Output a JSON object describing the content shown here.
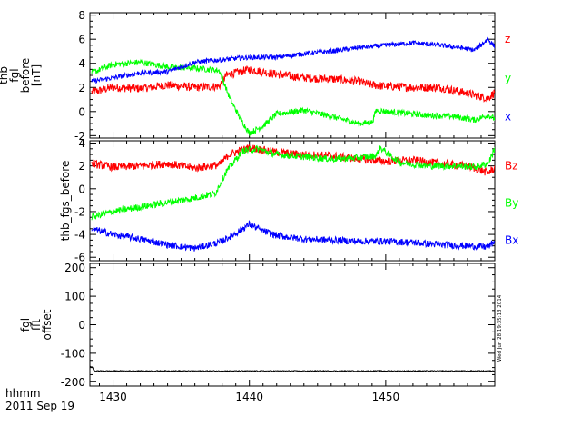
{
  "footer": {
    "time_label": "hhmm",
    "date_label": "2011 Sep 19",
    "stamp": "Wed Jun 28 19:35:13 2014"
  },
  "x_axis": {
    "range": [
      1428.3,
      1458.0
    ],
    "ticks": [
      1430,
      1440,
      1450
    ],
    "tick_labels": [
      "1430",
      "1440",
      "1450"
    ],
    "minor_step": 1
  },
  "colors": {
    "axes": "#000000",
    "red": "#ff0000",
    "green": "#00ff00",
    "blue": "#0000ff",
    "black": "#000000"
  },
  "chart_data": [
    {
      "type": "line",
      "ylabel_lines": [
        "thb",
        "fgl",
        "before",
        "[nT]"
      ],
      "ylim": [
        -2.2,
        8.2
      ],
      "yticks": [
        -2,
        0,
        2,
        4,
        6,
        8
      ],
      "ytick_labels": [
        "-2",
        "0",
        "2",
        "4",
        "6",
        "8"
      ],
      "grid": false,
      "legend": "right",
      "series": [
        {
          "name": "z",
          "color": "red",
          "noise": 0.35,
          "x": [
            1428.4,
            1430,
            1432,
            1434,
            1436,
            1437.8,
            1438.3,
            1440,
            1442,
            1444,
            1446,
            1448,
            1449,
            1450,
            1452,
            1454,
            1456,
            1457.5,
            1458
          ],
          "y": [
            1.6,
            2.0,
            1.9,
            2.2,
            2.0,
            2.1,
            3.0,
            3.5,
            3.1,
            2.8,
            2.7,
            2.5,
            2.2,
            2.1,
            2.0,
            2.0,
            1.5,
            1.1,
            1.6
          ]
        },
        {
          "name": "y",
          "color": "green",
          "noise": 0.25,
          "x": [
            1428.4,
            1430,
            1432,
            1434,
            1436,
            1437.8,
            1438.6,
            1439.3,
            1440,
            1441,
            1442,
            1444,
            1446,
            1448,
            1449,
            1449.3,
            1451,
            1453,
            1455,
            1456.5,
            1457.5,
            1458
          ],
          "y": [
            3.2,
            3.9,
            4.1,
            3.7,
            3.6,
            3.4,
            1.0,
            -0.5,
            -1.8,
            -1.2,
            -0.2,
            0.1,
            -0.4,
            -1.0,
            -0.9,
            0.1,
            -0.1,
            -0.3,
            -0.4,
            -0.7,
            -0.3,
            -0.6
          ]
        },
        {
          "name": "x",
          "color": "blue",
          "noise": 0.2,
          "x": [
            1428.4,
            1430,
            1432,
            1434,
            1436,
            1438,
            1440,
            1442,
            1444,
            1446,
            1448,
            1450,
            1452,
            1454,
            1455.5,
            1456.5,
            1457.5,
            1458
          ],
          "y": [
            2.5,
            2.8,
            3.2,
            3.3,
            4.1,
            4.3,
            4.5,
            4.5,
            4.8,
            5.0,
            5.3,
            5.5,
            5.7,
            5.5,
            5.3,
            5.1,
            6.0,
            5.4
          ]
        }
      ]
    },
    {
      "type": "line",
      "ylabel_lines": [
        "thb_fgs_before"
      ],
      "ylim": [
        -6.3,
        4.2
      ],
      "yticks": [
        -6,
        -4,
        -2,
        0,
        2,
        4
      ],
      "ytick_labels": [
        "-6",
        "-4",
        "-2",
        "0",
        "2",
        "4"
      ],
      "grid": false,
      "legend": "right",
      "series": [
        {
          "name": "Bz",
          "color": "red",
          "noise": 0.35,
          "x": [
            1428.4,
            1430,
            1432,
            1434,
            1436,
            1437.8,
            1438.5,
            1440,
            1442,
            1444,
            1446,
            1448,
            1450,
            1452,
            1454,
            1456,
            1457.5,
            1458
          ],
          "y": [
            2.2,
            1.9,
            2.0,
            2.2,
            1.8,
            2.1,
            3.0,
            3.6,
            3.2,
            3.0,
            2.9,
            2.6,
            2.4,
            2.5,
            2.2,
            2.0,
            1.4,
            1.8
          ]
        },
        {
          "name": "By",
          "color": "green",
          "noise": 0.3,
          "x": [
            1428.4,
            1430,
            1432,
            1434,
            1436,
            1437.5,
            1438.3,
            1439.5,
            1440.5,
            1442,
            1444,
            1446,
            1448,
            1449.3,
            1449.6,
            1451,
            1453,
            1455,
            1456.5,
            1457.5,
            1458
          ],
          "y": [
            -2.5,
            -2.0,
            -1.6,
            -1.2,
            -0.8,
            -0.4,
            1.5,
            3.3,
            3.5,
            3.0,
            2.8,
            2.6,
            2.7,
            2.9,
            3.6,
            2.3,
            2.0,
            2.0,
            1.9,
            2.2,
            3.5
          ]
        },
        {
          "name": "Bx",
          "color": "blue",
          "noise": 0.3,
          "x": [
            1428.4,
            1430,
            1432,
            1434,
            1436,
            1437.8,
            1439,
            1440,
            1441,
            1442,
            1444,
            1446,
            1448,
            1450,
            1452,
            1454,
            1456,
            1457.5,
            1458
          ],
          "y": [
            -3.5,
            -4.0,
            -4.4,
            -4.9,
            -5.2,
            -4.7,
            -3.9,
            -3.1,
            -3.7,
            -4.1,
            -4.4,
            -4.5,
            -4.6,
            -4.6,
            -4.7,
            -4.9,
            -5.0,
            -5.1,
            -4.6
          ]
        }
      ]
    },
    {
      "type": "line",
      "ylabel_lines": [
        "fgl",
        "fft",
        "offset"
      ],
      "ylim": [
        -215,
        215
      ],
      "yticks": [
        -200,
        -100,
        0,
        100,
        200
      ],
      "ytick_labels": [
        "-200",
        "-100",
        "0",
        "100",
        "200"
      ],
      "grid": false,
      "legend": "none",
      "series": [
        {
          "color": "black",
          "noise": 1.5,
          "x": [
            1428.3,
            1428.5,
            1428.6,
            1430,
            1440,
            1450,
            1458
          ],
          "y": [
            -145,
            -150,
            -162,
            -162,
            -162,
            -162,
            -162
          ]
        }
      ]
    }
  ]
}
